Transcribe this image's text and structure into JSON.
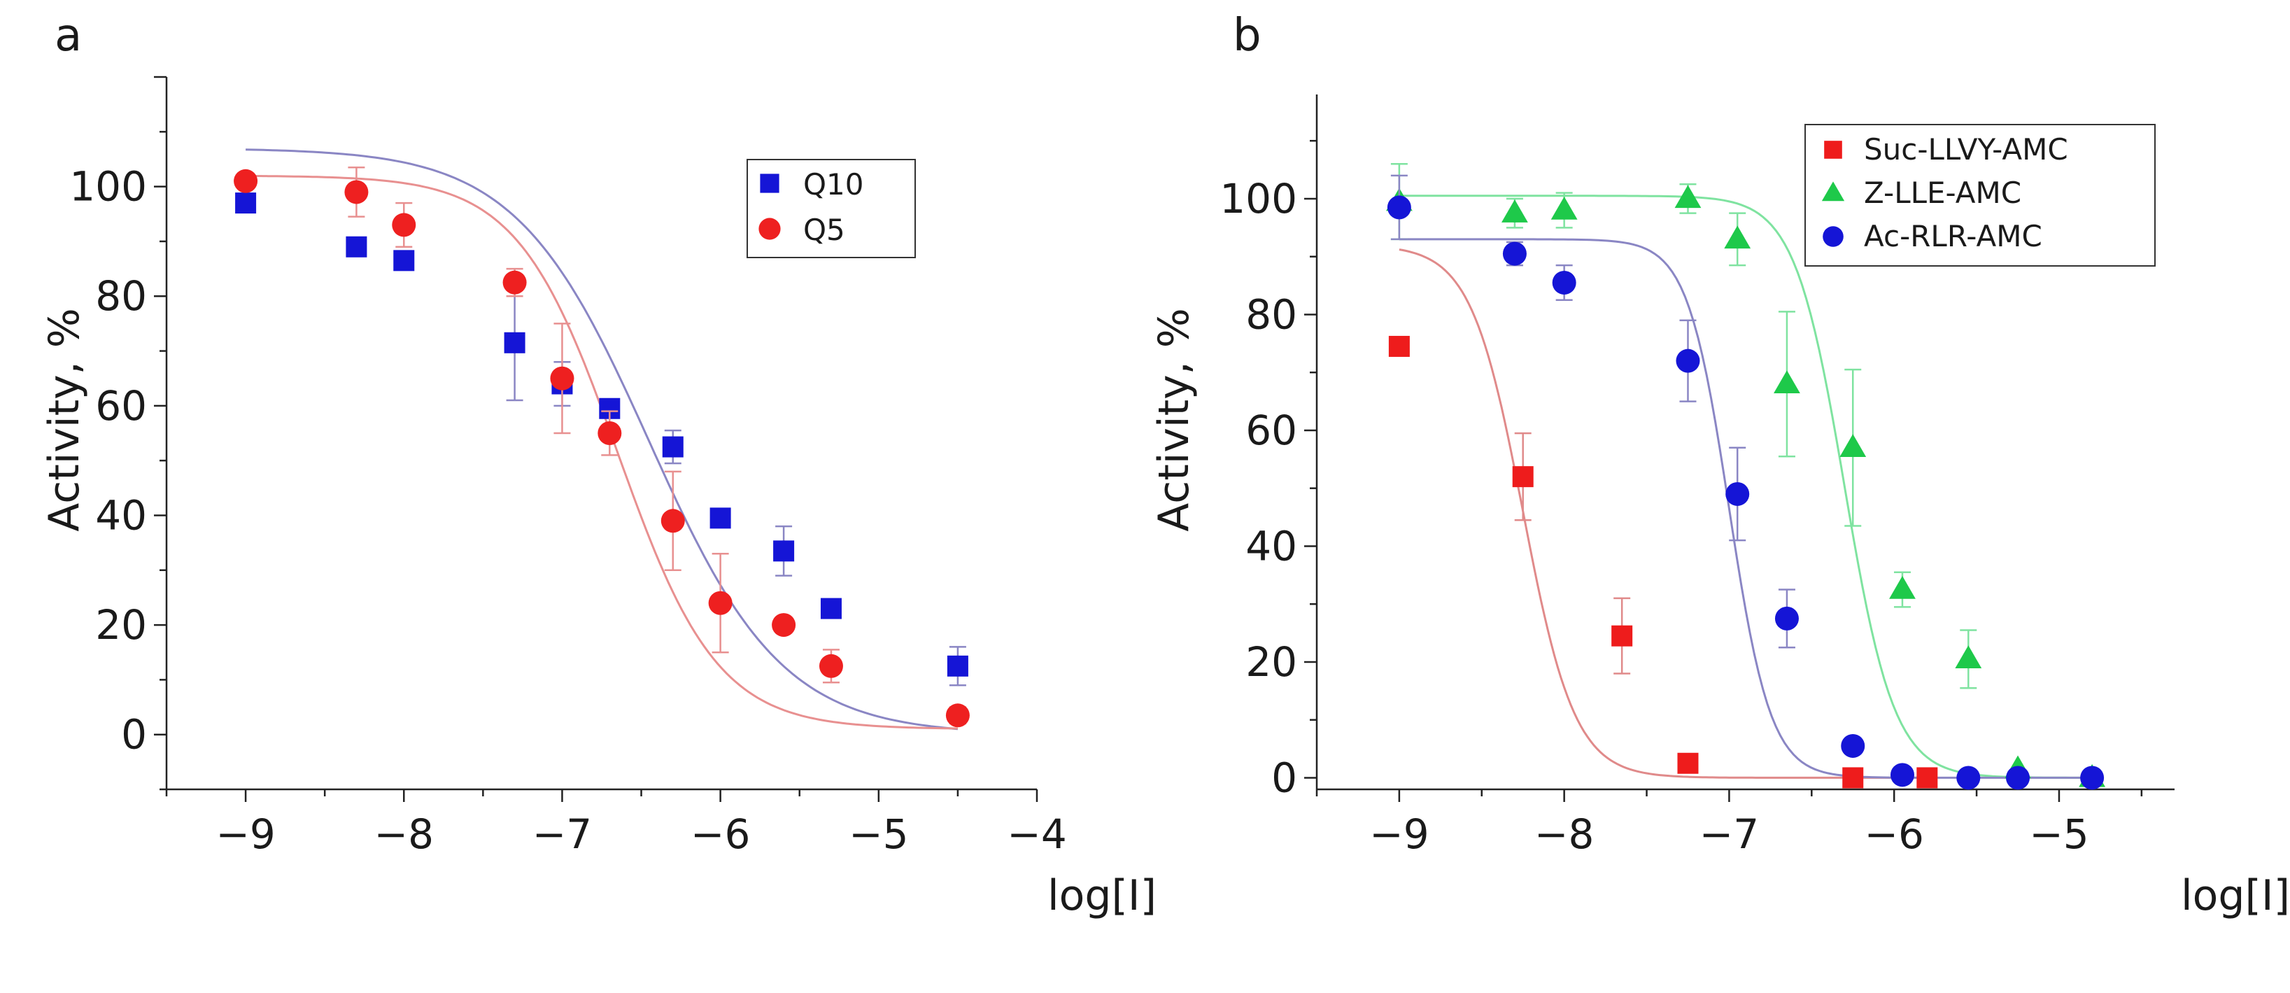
{
  "chart_data": [
    {
      "panel": "a",
      "type": "scatter",
      "xlabel": "log[I]",
      "ylabel": "Activity, %",
      "xlim": [
        -9.5,
        -4
      ],
      "ylim": [
        -10,
        120
      ],
      "xticks": [
        -9,
        -8,
        -7,
        -6,
        -5,
        -4
      ],
      "xtick_labels": [
        "−9",
        "−8",
        "−7",
        "−6",
        "−5",
        "−4"
      ],
      "yticks": [
        0,
        20,
        40,
        60,
        80,
        100
      ],
      "ytick_labels": [
        "0",
        "20",
        "40",
        "60",
        "80",
        "100"
      ],
      "legend_position": "top-right",
      "series": [
        {
          "name": "Q10",
          "marker": "square",
          "color": "#1515d6",
          "curve_color": "#8a86c4",
          "x": [
            -9,
            -8.3,
            -8,
            -7.3,
            -7,
            -6.7,
            -6.3,
            -6,
            -5.6,
            -5.3,
            -4.5
          ],
          "y": [
            97,
            89,
            86.5,
            71.5,
            64,
            59.5,
            52.5,
            39.5,
            33.5,
            23,
            12.5
          ],
          "err": [
            0,
            0,
            1.5,
            10.5,
            4,
            1.5,
            3,
            0,
            4.5,
            0,
            3.5
          ],
          "fit": {
            "top": 107,
            "bottom": 0,
            "log_ic50": -6.45,
            "hill": 0.45
          }
        },
        {
          "name": "Q5",
          "marker": "circle",
          "color": "#ee2020",
          "curve_color": "#e89090",
          "x": [
            -9,
            -8.3,
            -8,
            -7.3,
            -7,
            -6.7,
            -6.3,
            -6,
            -5.6,
            -5.3,
            -4.5
          ],
          "y": [
            101,
            99,
            93,
            82.5,
            65,
            55,
            39,
            24,
            20,
            12.5,
            3.5
          ],
          "err": [
            0,
            4.5,
            4,
            2.5,
            10,
            4,
            9,
            9,
            0,
            3,
            1.5
          ],
          "fit": {
            "top": 102,
            "bottom": 1,
            "log_ic50": -6.65,
            "hill": 0.6
          }
        }
      ]
    },
    {
      "panel": "b",
      "type": "scatter",
      "xlabel": "log[I]",
      "ylabel": "Activity, %",
      "xlim": [
        -9.5,
        -4.3
      ],
      "ylim": [
        -2,
        118
      ],
      "xticks": [
        -9,
        -8,
        -7,
        -6,
        -5
      ],
      "xtick_labels": [
        "−9",
        "−8",
        "−7",
        "−6",
        "−5"
      ],
      "yticks": [
        0,
        20,
        40,
        60,
        80,
        100
      ],
      "ytick_labels": [
        "0",
        "20",
        "40",
        "60",
        "80",
        "100"
      ],
      "legend_position": "top-right",
      "series": [
        {
          "name": "Suc-LLVY-AMC",
          "marker": "square",
          "color": "#ee1c1c",
          "curve_color": "#e08a8a",
          "x": [
            -9,
            -8.25,
            -7.65,
            -7.25,
            -6.25,
            -5.8
          ],
          "y": [
            74.5,
            52,
            24.5,
            2.5,
            0,
            0
          ],
          "err": [
            0,
            7.5,
            6.5,
            0,
            0,
            0
          ],
          "fit": {
            "top": 92,
            "bottom": 0,
            "log_ic50": -8.25,
            "hill": 1.2
          }
        },
        {
          "name": "Z-LLE-AMC",
          "marker": "triangle",
          "color": "#1ec94a",
          "curve_color": "#7fe3a0",
          "x": [
            -9,
            -8.3,
            -8,
            -7.25,
            -6.95,
            -6.65,
            -6.25,
            -5.95,
            -5.55,
            -5.25,
            -4.8
          ],
          "y": [
            99.5,
            97.5,
            98,
            100,
            93,
            68,
            57,
            32.5,
            20.5,
            1.5,
            0
          ],
          "err": [
            6.5,
            2.5,
            3,
            2.5,
            4.5,
            12.5,
            13.5,
            3,
            5,
            0,
            0
          ],
          "fit": {
            "top": 100.5,
            "bottom": 0,
            "log_ic50": -6.3,
            "hill": 1.25
          }
        },
        {
          "name": "Ac-RLR-AMC",
          "marker": "circle",
          "color": "#1515d6",
          "curve_color": "#8a86c4",
          "x": [
            -9,
            -8.3,
            -8,
            -7.25,
            -6.95,
            -6.65,
            -6.25,
            -5.95,
            -5.55,
            -5.25,
            -4.8
          ],
          "y": [
            98.5,
            90.5,
            85.5,
            72,
            49,
            27.5,
            5.5,
            0.5,
            0,
            0,
            0
          ],
          "err": [
            5.5,
            2,
            3,
            7,
            8,
            5,
            0,
            0,
            0,
            0,
            0
          ],
          "fit": {
            "top": 93,
            "bottom": 0,
            "log_ic50": -7.0,
            "hill": 1.5
          }
        }
      ]
    }
  ]
}
